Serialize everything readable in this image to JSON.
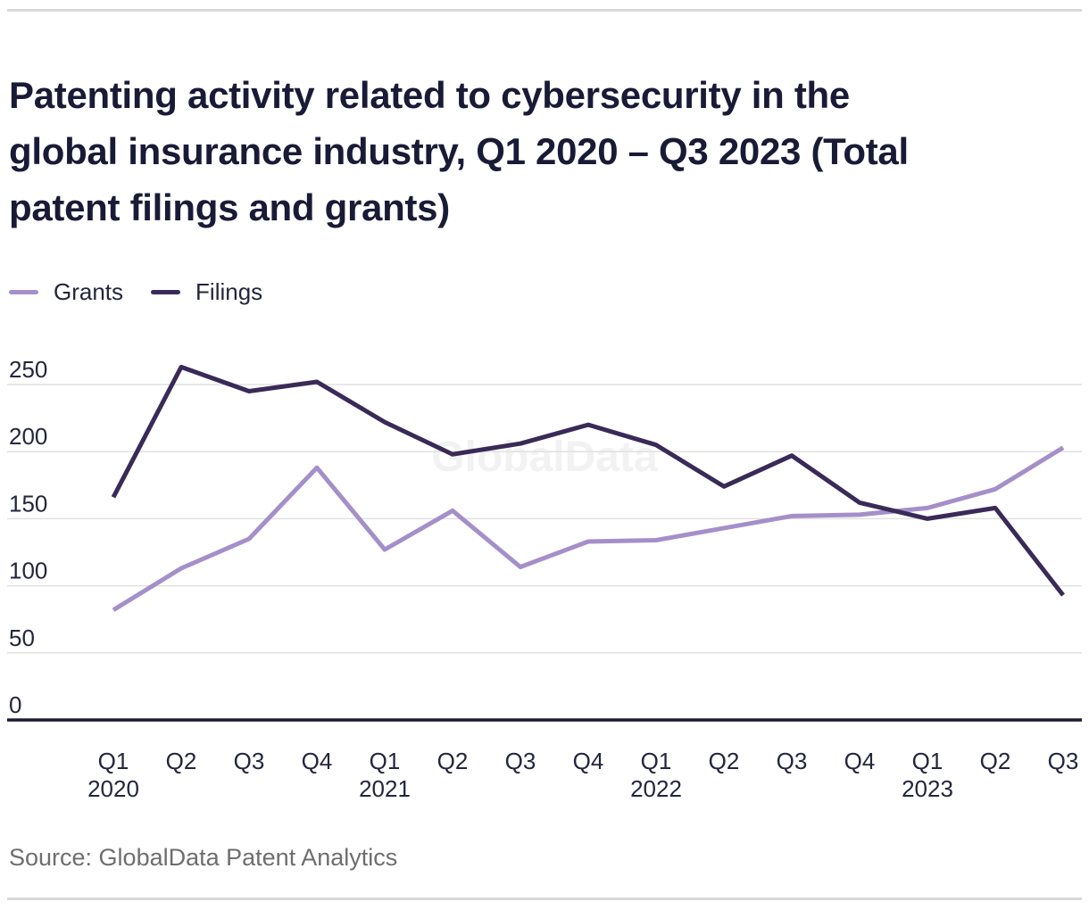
{
  "title": {
    "lines": [
      "Patenting activity related to cybersecurity in the",
      "global insurance industry, Q1 2020 – Q3 2023 (Total",
      "patent filings and grants)"
    ]
  },
  "legend": {
    "items": [
      {
        "label": "Grants"
      },
      {
        "label": "Filings"
      }
    ]
  },
  "source": {
    "text": "Source: GlobalData Patent Analytics"
  },
  "watermark": {
    "text": "GlobalData",
    "color": "#f2f2f2"
  },
  "colors": {
    "grants": "#a58fc9",
    "filings": "#3a2a58",
    "axis": "#1a1a33",
    "gridline": "#e1e1e1",
    "tick_text": "#23263d"
  },
  "chart_data": {
    "type": "line",
    "title": "Patenting activity related to cybersecurity in the global insurance industry, Q1 2020 – Q3 2023 (Total patent filings and grants)",
    "categories": [
      "Q1 2020",
      "Q2 2020",
      "Q3 2020",
      "Q4 2020",
      "Q1 2021",
      "Q2 2021",
      "Q3 2021",
      "Q4 2021",
      "Q1 2022",
      "Q2 2022",
      "Q3 2022",
      "Q4 2022",
      "Q1 2023",
      "Q2 2023",
      "Q3 2023"
    ],
    "series": [
      {
        "name": "Grants",
        "color": "#a58fc9",
        "values": [
          82,
          113,
          135,
          188,
          127,
          156,
          114,
          133,
          134,
          143,
          152,
          153,
          158,
          172,
          203
        ]
      },
      {
        "name": "Filings",
        "color": "#3a2a58",
        "values": [
          166,
          263,
          245,
          252,
          222,
          198,
          206,
          220,
          205,
          174,
          197,
          162,
          150,
          158,
          93
        ]
      }
    ],
    "xlabel": "",
    "ylabel": "",
    "y_ticks": [
      250,
      200,
      150,
      100,
      50,
      0
    ],
    "ylim": [
      0,
      250
    ],
    "grid": "horizontal",
    "legend_position": "top-left",
    "watermark": "GlobalData",
    "source": "Source: GlobalData Patent Analytics"
  }
}
